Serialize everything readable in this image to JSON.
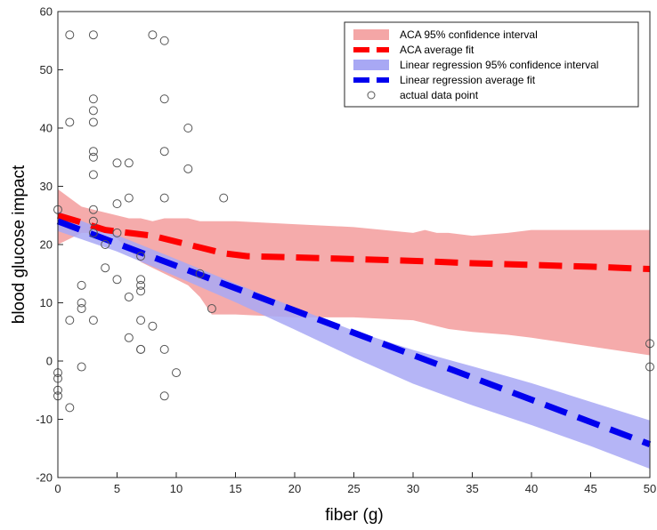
{
  "chart_data": {
    "type": "line",
    "title": "",
    "xlabel": "fiber (g)",
    "ylabel": "blood glucose impact",
    "xlim": [
      0,
      50
    ],
    "ylim": [
      -20,
      60
    ],
    "xticks": [
      0,
      5,
      10,
      15,
      20,
      25,
      30,
      35,
      40,
      45,
      50
    ],
    "yticks": [
      -20,
      -10,
      0,
      10,
      20,
      30,
      40,
      50,
      60
    ],
    "xtick_labels": [
      "0",
      "5",
      "10",
      "15",
      "20",
      "25",
      "30",
      "35",
      "40",
      "45",
      "50"
    ],
    "ytick_labels": [
      "-20",
      "-10",
      "0",
      "10",
      "20",
      "30",
      "40",
      "50",
      "60"
    ],
    "grid": false,
    "legend_position": "top-right",
    "legend": [
      {
        "label": "ACA 95% confidence interval",
        "kind": "band",
        "color": "#f4a6a6"
      },
      {
        "label": "ACA average fit",
        "kind": "dashed-line",
        "color": "#ff0000"
      },
      {
        "label": "Linear regression 95% confidence interval",
        "kind": "band",
        "color": "#a8a8f4"
      },
      {
        "label": "Linear regression average fit",
        "kind": "dashed-line",
        "color": "#0000ee"
      },
      {
        "label": "actual data point",
        "kind": "marker",
        "color": "#555555"
      }
    ],
    "series": [
      {
        "name": "ACA 95% confidence interval",
        "kind": "band",
        "color": "#f4a6a6",
        "x": [
          0,
          1,
          2,
          3,
          4,
          5,
          6,
          7,
          8,
          9,
          10,
          11,
          12,
          13,
          14,
          15,
          20,
          25,
          30,
          31,
          32,
          33,
          35,
          38,
          40,
          45,
          50
        ],
        "lower": [
          20,
          21,
          22,
          22,
          22,
          21,
          19,
          17,
          16,
          15,
          14,
          13,
          11,
          8,
          8,
          8,
          7.5,
          7.5,
          7,
          6.5,
          6,
          5.5,
          5,
          4.5,
          4,
          2.5,
          1
        ],
        "upper": [
          29.5,
          28,
          26.5,
          26,
          25.5,
          25,
          24.5,
          24.5,
          24,
          24.5,
          24.5,
          24.5,
          24,
          24,
          24,
          24,
          23.5,
          23,
          22,
          22.5,
          22,
          22,
          21.5,
          22,
          22.5,
          22.5,
          22.5
        ]
      },
      {
        "name": "Linear regression 95% confidence interval",
        "kind": "band",
        "color": "#a8a8f4",
        "x": [
          0,
          5,
          10,
          15,
          20,
          25,
          30,
          35,
          40,
          45,
          50
        ],
        "lower": [
          22.3,
          18.8,
          14.5,
          10.1,
          5.4,
          0.6,
          -3.9,
          -7.6,
          -11,
          -14.6,
          -18.5
        ],
        "upper": [
          25.7,
          21.6,
          17.5,
          13.3,
          9.2,
          5.2,
          1.9,
          -0.9,
          -3.8,
          -7,
          -10.2
        ]
      },
      {
        "name": "ACA average fit",
        "kind": "dashed-line",
        "color": "#ff0000",
        "x": [
          0,
          2,
          4,
          6,
          8,
          10,
          12,
          14,
          16,
          20,
          25,
          30,
          35,
          40,
          45,
          50
        ],
        "y": [
          25,
          23.8,
          22.5,
          22,
          21.5,
          20.5,
          19.5,
          18.5,
          18,
          17.8,
          17.5,
          17.2,
          16.8,
          16.5,
          16.2,
          15.8
        ]
      },
      {
        "name": "Linear regression average fit",
        "kind": "dashed-line",
        "color": "#0000ee",
        "x": [
          0,
          50
        ],
        "y": [
          24,
          -14.3
        ]
      },
      {
        "name": "actual data point",
        "kind": "scatter",
        "color": "#555555",
        "x": [
          0,
          0,
          0,
          0,
          0,
          1,
          1,
          1,
          1,
          2,
          2,
          2,
          2,
          3,
          3,
          3,
          3,
          3,
          3,
          3,
          3,
          3,
          3,
          3,
          4,
          4,
          5,
          5,
          5,
          5,
          6,
          6,
          6,
          6,
          7,
          7,
          7,
          7,
          7,
          7,
          7,
          8,
          8,
          9,
          9,
          9,
          9,
          9,
          9,
          10,
          11,
          11,
          12,
          13,
          14,
          50,
          50
        ],
        "y": [
          26,
          -2,
          -3,
          -5,
          -6,
          56,
          41,
          7,
          -8,
          13,
          10,
          9,
          -1,
          56,
          45,
          43,
          41,
          36,
          35,
          32,
          26,
          24,
          7,
          22,
          20,
          16,
          34,
          27,
          22,
          14,
          34,
          28,
          11,
          4,
          18,
          14,
          13,
          12,
          7,
          2,
          2,
          56,
          6,
          55,
          45,
          36,
          28,
          2,
          -6,
          -2,
          40,
          33,
          15,
          9,
          28,
          3,
          -1
        ]
      }
    ]
  }
}
